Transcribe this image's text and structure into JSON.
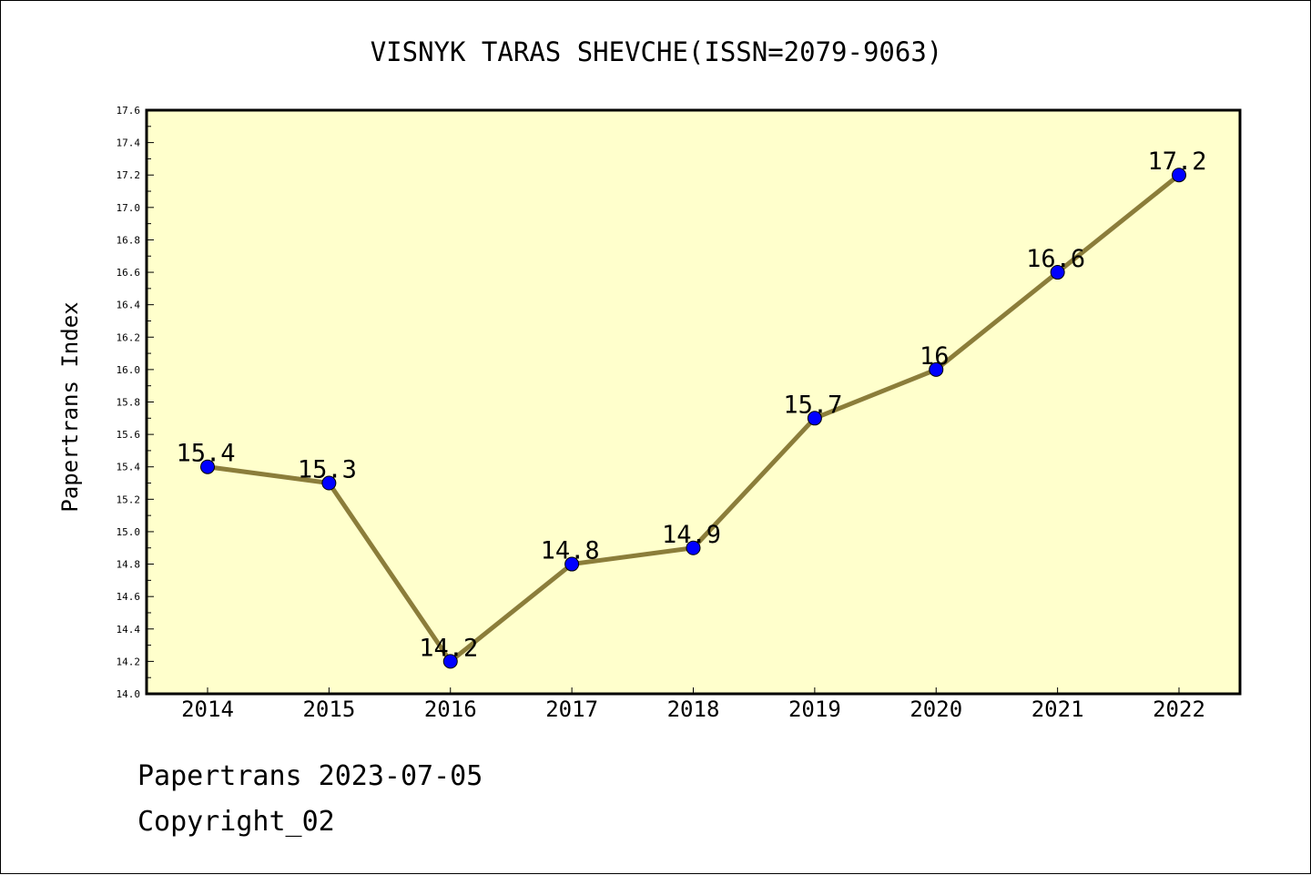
{
  "chart_data": {
    "type": "line",
    "title": "VISNYK TARAS SHEVCHE(ISSN=2079-9063)",
    "xlabel": "",
    "ylabel": "Papertrans Index",
    "categories": [
      "2014",
      "2015",
      "2016",
      "2017",
      "2018",
      "2019",
      "2020",
      "2021",
      "2022"
    ],
    "series": [
      {
        "values": [
          15.4,
          15.3,
          14.2,
          14.8,
          14.9,
          15.7,
          16,
          16.6,
          17.2
        ],
        "data_labels": [
          "15.4",
          "15.3",
          "14.2",
          "14.8",
          "14.9",
          "15.7",
          "16",
          "16.6",
          "17.2"
        ]
      }
    ],
    "ylim": [
      14.0,
      17.6
    ],
    "yticks": [
      "14.0",
      "14.2",
      "14.4",
      "14.6",
      "14.8",
      "15.0",
      "15.2",
      "15.4",
      "15.6",
      "15.8",
      "16.0",
      "16.2",
      "16.4",
      "16.6",
      "16.8",
      "17.0",
      "17.2",
      "17.4",
      "17.6"
    ],
    "grid": false,
    "colors": {
      "plot_background": "#ffffcc",
      "line": "#8b7d3a",
      "marker": "#0000ff"
    }
  },
  "footer": {
    "line1": "Papertrans 2023-07-05",
    "line2": "Copyright_02"
  }
}
